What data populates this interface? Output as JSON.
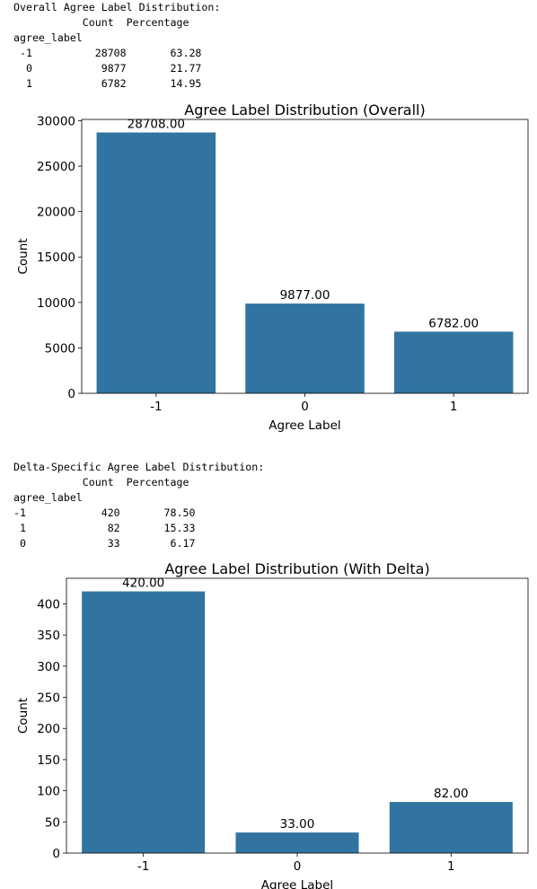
{
  "overall_output": {
    "heading": "Overall Agree Label Distribution:",
    "header": "           Count  Percentage",
    "index_name": "agree_label",
    "rows": [
      " -1          28708       63.28",
      "  0           9877       21.77",
      "  1           6782       14.95"
    ]
  },
  "delta_output": {
    "heading": "Delta-Specific Agree Label Distribution:",
    "header": "           Count  Percentage",
    "index_name": "agree_label",
    "rows": [
      "-1            420       78.50",
      " 1             82       15.33",
      " 0             33        6.17"
    ]
  },
  "chart_data": [
    {
      "type": "bar",
      "title": "Agree Label Distribution (Overall)",
      "xlabel": "Agree Label",
      "ylabel": "Count",
      "categories": [
        "-1",
        "0",
        "1"
      ],
      "values": [
        28708,
        9877,
        6782
      ],
      "value_labels": [
        "28708.00",
        "9877.00",
        "6782.00"
      ],
      "ylim": [
        0,
        30144
      ],
      "yticks": [
        0,
        5000,
        10000,
        15000,
        20000,
        25000,
        30000
      ],
      "grid": false,
      "bar_color": "#3274a1"
    },
    {
      "type": "bar",
      "title": "Agree Label Distribution (With Delta)",
      "xlabel": "Agree Label",
      "ylabel": "Count",
      "categories": [
        "-1",
        "0",
        "1"
      ],
      "values": [
        420,
        33,
        82
      ],
      "value_labels": [
        "420.00",
        "33.00",
        "82.00"
      ],
      "ylim": [
        0,
        441
      ],
      "yticks": [
        0,
        50,
        100,
        150,
        200,
        250,
        300,
        350,
        400
      ],
      "grid": false,
      "bar_color": "#3274a1"
    }
  ]
}
